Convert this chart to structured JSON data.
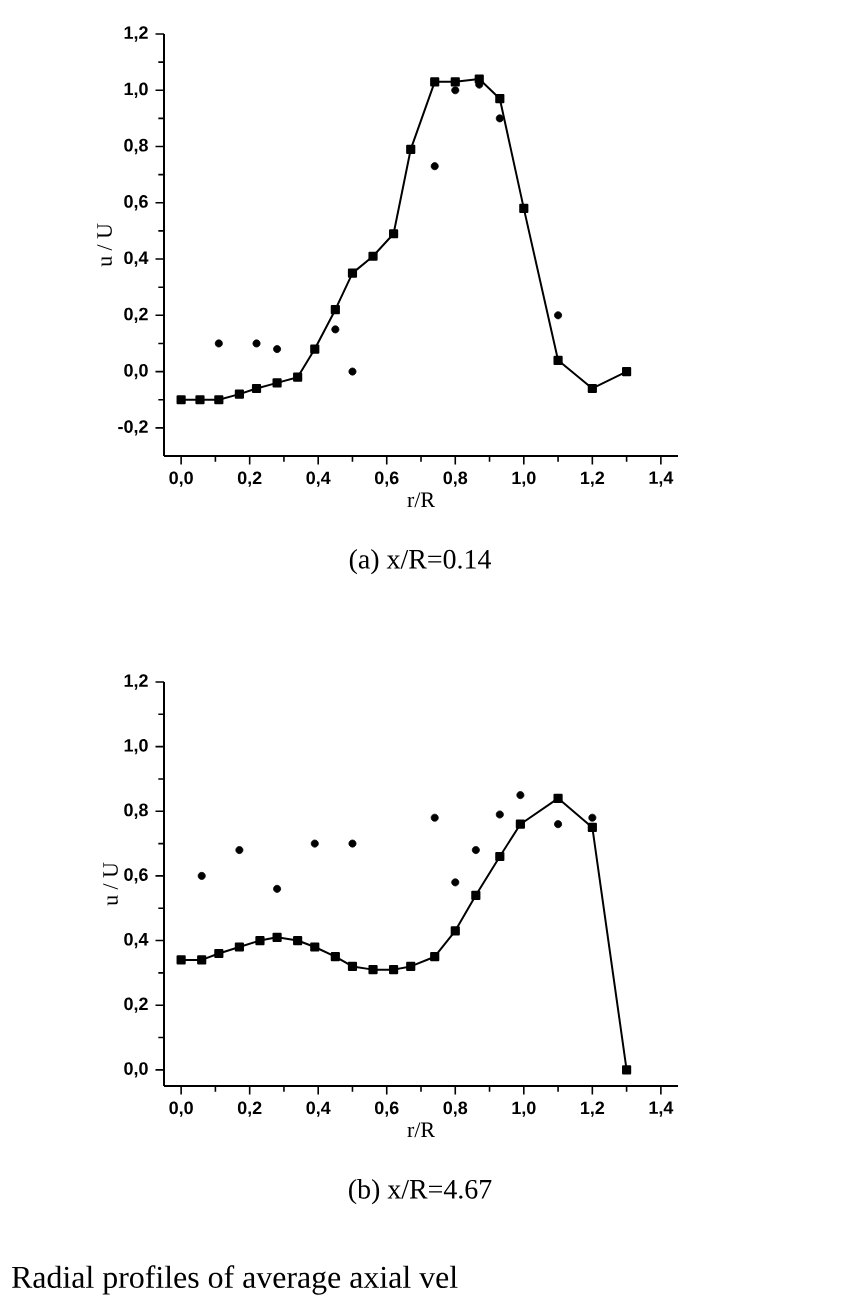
{
  "chart_data": [
    {
      "type": "line",
      "title": "(a) x/R=0.14",
      "xlabel": "r/R",
      "ylabel": "u / U",
      "xlim": [
        -0.05,
        1.45
      ],
      "ylim": [
        -0.3,
        1.2
      ],
      "xticks": [
        {
          "value": 0,
          "label": "0,0"
        },
        {
          "value": 0.2,
          "label": "0,2"
        },
        {
          "value": 0.4,
          "label": "0,4"
        },
        {
          "value": 0.6,
          "label": "0,6"
        },
        {
          "value": 0.8,
          "label": "0,8"
        },
        {
          "value": 1.0,
          "label": "1,0"
        },
        {
          "value": 1.2,
          "label": "1,2"
        },
        {
          "value": 1.4,
          "label": "1,4"
        }
      ],
      "yticks": [
        {
          "value": -0.2,
          "label": "-0,2"
        },
        {
          "value": 0,
          "label": "0,0"
        },
        {
          "value": 0.2,
          "label": "0,2"
        },
        {
          "value": 0.4,
          "label": "0,4"
        },
        {
          "value": 0.6,
          "label": "0,6"
        },
        {
          "value": 0.8,
          "label": "0,8"
        },
        {
          "value": 1.0,
          "label": "1,0"
        },
        {
          "value": 1.2,
          "label": "1,2"
        }
      ],
      "series": [
        {
          "type": "line",
          "marker": "square",
          "color": "#000000",
          "x": [
            0,
            0.055,
            0.11,
            0.17,
            0.22,
            0.28,
            0.34,
            0.39,
            0.45,
            0.5,
            0.56,
            0.62,
            0.67,
            0.74,
            0.8,
            0.87,
            0.93,
            1.0,
            1.1,
            1.2,
            1.3
          ],
          "values": [
            -0.1,
            -0.1,
            -0.1,
            -0.08,
            -0.06,
            -0.04,
            -0.02,
            0.08,
            0.22,
            0.35,
            0.41,
            0.49,
            0.79,
            1.03,
            1.03,
            1.04,
            0.97,
            0.58,
            0.04,
            -0.06,
            0.0
          ]
        },
        {
          "type": "scatter",
          "marker": "circle",
          "color": "#000000",
          "x": [
            0.11,
            0.22,
            0.28,
            0.45,
            0.5,
            0.74,
            0.8,
            0.87,
            0.93,
            1.1
          ],
          "values": [
            0.1,
            0.1,
            0.08,
            0.15,
            0.0,
            0.73,
            1.0,
            1.02,
            0.9,
            0.2
          ]
        }
      ]
    },
    {
      "type": "line",
      "title": "(b) x/R=4.67",
      "xlabel": "r/R",
      "ylabel": "u / U",
      "xlim": [
        -0.05,
        1.45
      ],
      "ylim": [
        -0.05,
        1.2
      ],
      "annotations": [
        "Radial profiles of average axial vel"
      ],
      "xticks": [
        {
          "value": 0,
          "label": "0,0"
        },
        {
          "value": 0.2,
          "label": "0,2"
        },
        {
          "value": 0.4,
          "label": "0,4"
        },
        {
          "value": 0.6,
          "label": "0,6"
        },
        {
          "value": 0.8,
          "label": "0,8"
        },
        {
          "value": 1.0,
          "label": "1,0"
        },
        {
          "value": 1.2,
          "label": "1,2"
        },
        {
          "value": 1.4,
          "label": "1,4"
        }
      ],
      "yticks": [
        {
          "value": 0,
          "label": "0,0"
        },
        {
          "value": 0.2,
          "label": "0,2"
        },
        {
          "value": 0.4,
          "label": "0,4"
        },
        {
          "value": 0.6,
          "label": "0,6"
        },
        {
          "value": 0.8,
          "label": "0,8"
        },
        {
          "value": 1.0,
          "label": "1,0"
        },
        {
          "value": 1.2,
          "label": "1,2"
        }
      ],
      "series": [
        {
          "type": "line",
          "marker": "square",
          "color": "#000000",
          "x": [
            0,
            0.06,
            0.11,
            0.17,
            0.23,
            0.28,
            0.34,
            0.39,
            0.45,
            0.5,
            0.56,
            0.62,
            0.67,
            0.74,
            0.8,
            0.86,
            0.93,
            0.99,
            1.1,
            1.2,
            1.3
          ],
          "values": [
            0.34,
            0.34,
            0.36,
            0.38,
            0.4,
            0.41,
            0.4,
            0.38,
            0.35,
            0.32,
            0.31,
            0.31,
            0.32,
            0.35,
            0.43,
            0.54,
            0.66,
            0.76,
            0.84,
            0.75,
            0.0
          ]
        },
        {
          "type": "scatter",
          "marker": "circle",
          "color": "#000000",
          "x": [
            0.06,
            0.17,
            0.28,
            0.39,
            0.5,
            0.74,
            0.8,
            0.86,
            0.93,
            0.99,
            1.1,
            1.2
          ],
          "values": [
            0.6,
            0.68,
            0.56,
            0.7,
            0.7,
            0.78,
            0.58,
            0.68,
            0.79,
            0.85,
            0.76,
            0.78
          ]
        }
      ]
    }
  ]
}
